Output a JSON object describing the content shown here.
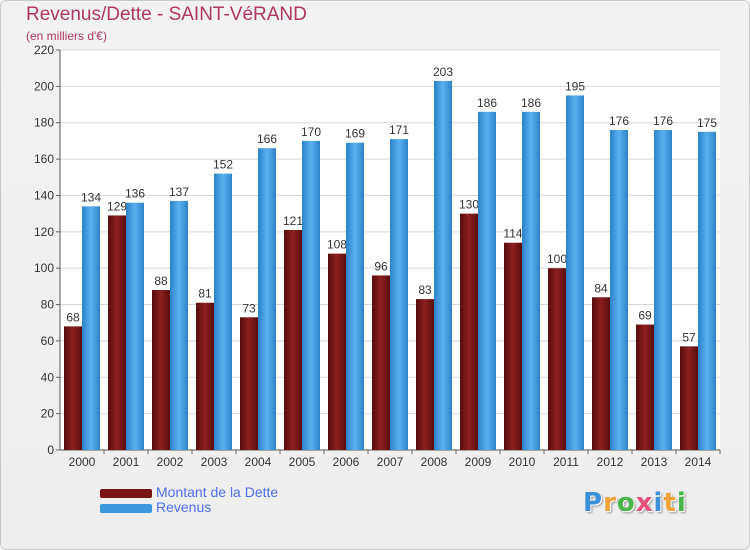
{
  "title": "Revenus/Dette - SAINT-VéRAND",
  "subtitle": "(en milliers d'€)",
  "colors": {
    "dette": "#7a1414",
    "revenus": "#3a98de",
    "title": "#b0375d",
    "legend_text": "#4d6fe8"
  },
  "chart_data": {
    "type": "bar",
    "categories": [
      "2000",
      "2001",
      "2002",
      "2003",
      "2004",
      "2005",
      "2006",
      "2007",
      "2008",
      "2009",
      "2010",
      "2011",
      "2012",
      "2013",
      "2014"
    ],
    "series": [
      {
        "name": "Montant de la Dette",
        "values": [
          68,
          129,
          88,
          81,
          73,
          121,
          108,
          96,
          83,
          130,
          114,
          100,
          84,
          69,
          57
        ]
      },
      {
        "name": "Revenus",
        "values": [
          134,
          136,
          137,
          152,
          166,
          170,
          169,
          171,
          203,
          186,
          186,
          195,
          176,
          176,
          175
        ]
      }
    ],
    "ylim": [
      0,
      220
    ],
    "yticks": [
      0,
      20,
      40,
      60,
      80,
      100,
      120,
      140,
      160,
      180,
      200,
      220
    ],
    "grid": true,
    "legend_position": "bottom-left"
  },
  "legend": {
    "dette_label": "Montant de la Dette",
    "revenus_label": "Revenus"
  },
  "logo": {
    "letters": [
      "P",
      "r",
      "o",
      "x",
      "i",
      "t",
      "i"
    ],
    "colors": [
      "#3b8fd9",
      "#f0a33b",
      "#47b548",
      "#e8507a",
      "#3b8fd9",
      "#f0a33b",
      "#47b548"
    ]
  }
}
